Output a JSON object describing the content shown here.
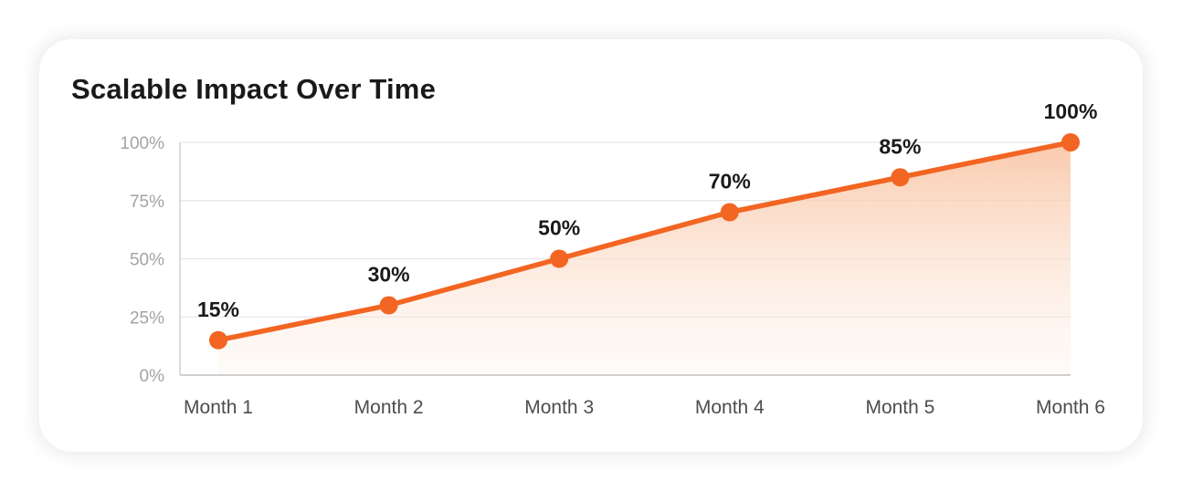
{
  "chart_data": {
    "type": "line",
    "title": "Scalable Impact Over Time",
    "categories": [
      "Month 1",
      "Month 2",
      "Month 3",
      "Month 4",
      "Month 5",
      "Month 6"
    ],
    "series": [
      {
        "values": [
          15,
          30,
          50,
          70,
          85,
          100
        ],
        "data_labels": [
          "15%",
          "30%",
          "50%",
          "70%",
          "85%",
          "100%"
        ]
      }
    ],
    "y_ticks": [
      0,
      25,
      50,
      75,
      100
    ],
    "y_tick_labels": [
      "0%",
      "25%",
      "50%",
      "75%",
      "100%"
    ],
    "ylim": [
      0,
      100
    ],
    "grid": true,
    "area_fill": true,
    "colors": {
      "line": "#f26522",
      "area_top": "#f9c7a8",
      "grid": "#e6e6e6"
    }
  }
}
